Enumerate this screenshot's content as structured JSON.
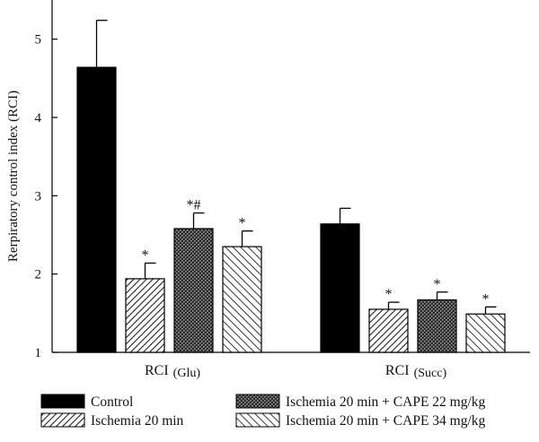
{
  "chart_data": {
    "type": "bar",
    "ylabel": "Rerpiratory control index (RCI)",
    "ylim": [
      1,
      5.5
    ],
    "yticks": [
      "1",
      "2",
      "3",
      "4",
      "5"
    ],
    "groups": [
      {
        "main": "RCI",
        "sub": "(Glu)"
      },
      {
        "main": "RCI",
        "sub": "(Succ)"
      }
    ],
    "series": [
      {
        "name": "Control",
        "pattern": "solid",
        "values": [
          4.64,
          2.64
        ],
        "errors": [
          0.6,
          0.2
        ],
        "annotations": [
          "",
          ""
        ]
      },
      {
        "name": "Ischemia 20 min",
        "pattern": "diag-dense",
        "values": [
          1.94,
          1.55
        ],
        "errors": [
          0.2,
          0.09
        ],
        "annotations": [
          "*",
          "*"
        ]
      },
      {
        "name": "Ischemia 20 min + CAPE 22 mg/kg",
        "pattern": "crosshatch",
        "values": [
          2.58,
          1.67
        ],
        "errors": [
          0.2,
          0.1
        ],
        "annotations": [
          "*#",
          "*"
        ]
      },
      {
        "name": "Ischemia 20 min + CAPE 34 mg/kg",
        "pattern": "diag-wide",
        "values": [
          2.35,
          1.49
        ],
        "errors": [
          0.2,
          0.09
        ],
        "annotations": [
          "*",
          "*"
        ]
      }
    ],
    "grid": false,
    "legend_position": "bottom"
  }
}
